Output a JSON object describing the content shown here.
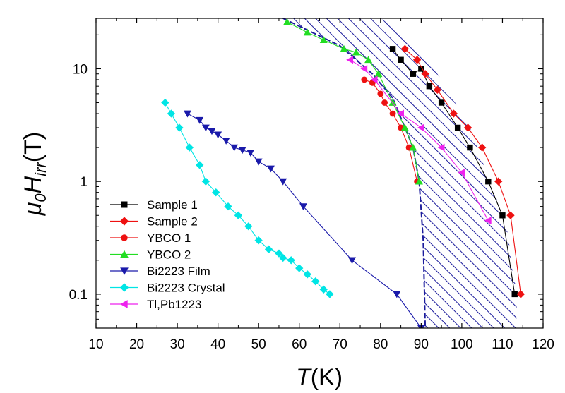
{
  "chart_data": {
    "type": "scatter",
    "title": "",
    "xlabel": "T(K)",
    "ylabel": "μ0Hirr(T)",
    "xscale": "linear",
    "yscale": "log",
    "xlim": [
      10,
      120
    ],
    "ylim": [
      0.05,
      28
    ],
    "xticks": [
      10,
      20,
      30,
      40,
      50,
      60,
      70,
      80,
      90,
      100,
      110,
      120
    ],
    "xtick_labels": [
      "10",
      "20",
      "30",
      "40",
      "50",
      "60",
      "70",
      "80",
      "90",
      "100",
      "110",
      "120"
    ],
    "yticks": [
      0.1,
      1,
      10
    ],
    "ytick_labels": [
      "0.1",
      "1",
      "10"
    ],
    "grid": false,
    "legend_position": "bottom-left",
    "shaded_region": {
      "fill": "diagonal-hatch",
      "color": "#1c1c9c",
      "left_boundary": [
        [
          56,
          28
        ],
        [
          70,
          16
        ],
        [
          78,
          9
        ],
        [
          83,
          5.5
        ],
        [
          86,
          3
        ],
        [
          88,
          2
        ],
        [
          89.5,
          1
        ],
        [
          90.5,
          0.3
        ],
        [
          91,
          0.05
        ]
      ],
      "right_boundary": [
        [
          80,
          28
        ],
        [
          88,
          18
        ],
        [
          95,
          8
        ],
        [
          102,
          3
        ],
        [
          107,
          1
        ],
        [
          111,
          0.4
        ],
        [
          113.5,
          0.1
        ],
        [
          113.5,
          0.05
        ]
      ]
    },
    "series": [
      {
        "name": "Sample 1",
        "color": "#000000",
        "line_color": "#000000",
        "marker": "square",
        "x": [
          83,
          85,
          88,
          90,
          92,
          95,
          99,
          102,
          106.5,
          110,
          113
        ],
        "y": [
          15,
          12,
          9,
          10,
          7,
          5,
          3,
          2,
          1,
          0.5,
          0.1
        ]
      },
      {
        "name": "Sample 2",
        "color": "#ee1111",
        "line_color": "#ee1111",
        "marker": "diamond",
        "x": [
          86,
          89,
          91,
          94,
          98,
          101.5,
          105,
          109,
          112,
          114.5
        ],
        "y": [
          15,
          12,
          9,
          6.5,
          4,
          3,
          2,
          1,
          0.5,
          0.1
        ]
      },
      {
        "name": "YBCO 1",
        "color": "#ee1111",
        "line_color": "#ee1111",
        "marker": "circle",
        "x": [
          76,
          78,
          80,
          81,
          83,
          85,
          87,
          89
        ],
        "y": [
          8,
          7.5,
          6,
          5,
          4,
          3,
          2,
          1
        ]
      },
      {
        "name": "YBCO 2",
        "color": "#22dd22",
        "line_color": "#22dd22",
        "marker": "triangle-up",
        "x": [
          57,
          62,
          66,
          71,
          74,
          77,
          79.5,
          83,
          86,
          88,
          89.5
        ],
        "y": [
          26,
          21,
          18,
          15,
          14,
          12,
          9,
          5,
          3,
          2,
          1
        ]
      },
      {
        "name": "Bi2223 Film",
        "color": "#1a1aaa",
        "line_color": "#1a1aaa",
        "marker": "triangle-down",
        "x": [
          32.5,
          35.5,
          37,
          38.5,
          40,
          42,
          44,
          46,
          48,
          50,
          53,
          56,
          61,
          73,
          84,
          90
        ],
        "y": [
          4,
          3.5,
          3,
          2.8,
          2.6,
          2.3,
          2,
          1.9,
          1.8,
          1.5,
          1.3,
          1.0,
          0.6,
          0.2,
          0.1,
          0.05
        ]
      },
      {
        "name": "Bi2223 Crystal",
        "color": "#00e5e5",
        "line_color": "#00e5e5",
        "marker": "diamond",
        "x": [
          27,
          28.5,
          30.5,
          33,
          35.5,
          37,
          39.5,
          42.5,
          45,
          47.5,
          50,
          52.5,
          55,
          56,
          58,
          60,
          62,
          64,
          66,
          67.5
        ],
        "y": [
          5,
          4,
          3,
          2,
          1.4,
          1,
          0.8,
          0.6,
          0.5,
          0.4,
          0.3,
          0.25,
          0.23,
          0.21,
          0.2,
          0.17,
          0.15,
          0.13,
          0.11,
          0.1
        ]
      },
      {
        "name": "Tl,Pb1223",
        "color": "#ee22ee",
        "line_color": "#ee22ee",
        "marker": "triangle-left",
        "x": [
          72.5,
          76,
          78.5,
          85,
          90,
          95,
          100,
          106.5
        ],
        "y": [
          12,
          10,
          8,
          4,
          3,
          2,
          1.2,
          0.45
        ]
      }
    ]
  }
}
